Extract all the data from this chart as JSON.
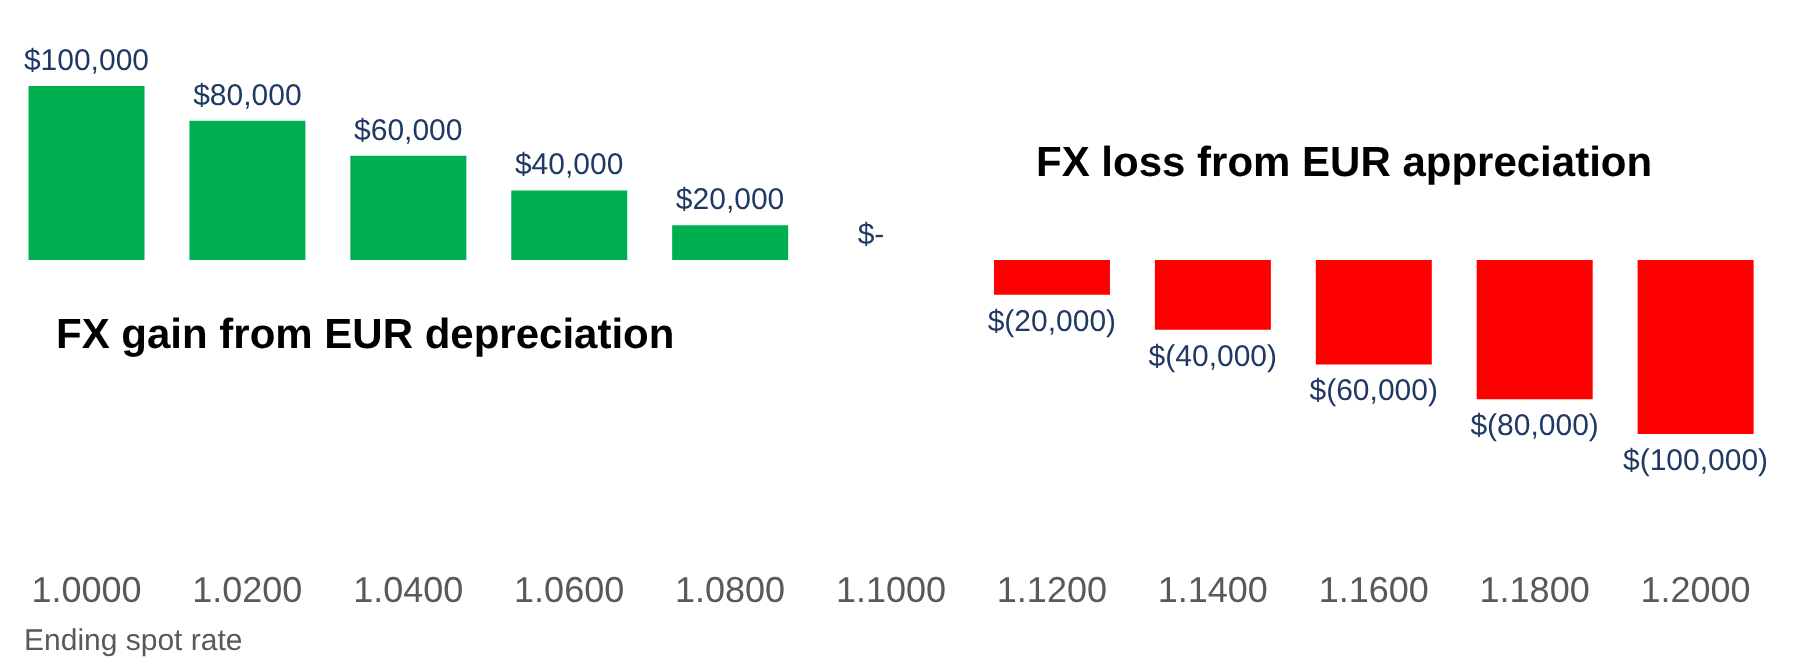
{
  "chart_data": {
    "type": "bar",
    "xlabel": "Ending spot rate",
    "categories": [
      "1.0000",
      "1.0200",
      "1.0400",
      "1.0600",
      "1.0800",
      "1.1000",
      "1.1200",
      "1.1400",
      "1.1600",
      "1.1800",
      "1.2000"
    ],
    "values": [
      100000,
      80000,
      60000,
      40000,
      20000,
      0,
      -20000,
      -40000,
      -60000,
      -80000,
      -100000
    ],
    "colors": [
      "#00b050",
      "#00b050",
      "#00b050",
      "#00b050",
      "#00b050",
      "#00b050",
      "#ff0000",
      "#ff0000",
      "#ff0000",
      "#ff0000",
      "#ff0000"
    ],
    "value_labels": [
      "$100,000",
      "$80,000",
      "$60,000",
      "$40,000",
      "$20,000",
      "$-",
      "$(20,000)",
      "$(40,000)",
      "$(60,000)",
      "$(80,000)",
      "$(100,000)"
    ],
    "annotations": [
      "FX gain from EUR depreciation",
      "FX loss from EUR appreciation"
    ],
    "grid": false,
    "legend": false
  }
}
